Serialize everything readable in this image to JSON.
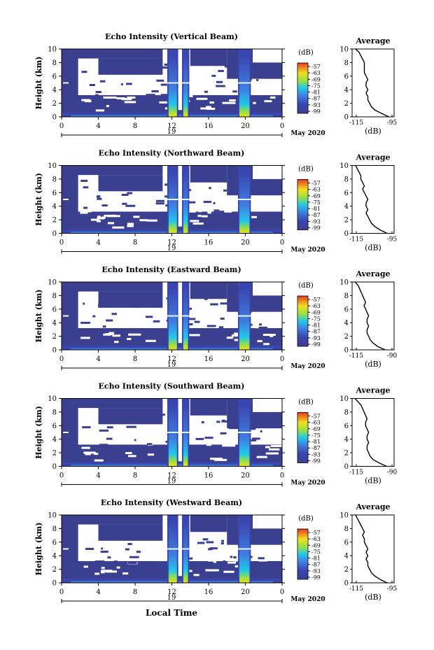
{
  "figure": {
    "xlabel": "Local Time",
    "avg_title": "Average",
    "colorbar_unit": "(dB)",
    "date_label": "May 2020",
    "day_label": "19",
    "x_ticks": [
      "0",
      "4",
      "8",
      "12",
      "16",
      "20",
      "0"
    ],
    "y_ticks": [
      "0",
      "2",
      "4",
      "6",
      "8",
      "10"
    ],
    "ylabel": "Height (km)",
    "colorbar_ticks": [
      "-57",
      "-63",
      "-69",
      "-75",
      "-81",
      "-87",
      "-93",
      "-99"
    ],
    "colors": {
      "background": "#3b3f8f",
      "low": "#3a46b0",
      "mid_blue": "#3f7fe0",
      "cyan": "#22c8e8",
      "green": "#9be040",
      "yellow": "#f0e020",
      "red": "#e83820"
    }
  },
  "chart_data": [
    {
      "type": "heatmap",
      "title": "Echo Intensity (Vertical Beam)",
      "xlabel": "",
      "ylabel": "Height (km)",
      "xlim": [
        0,
        24
      ],
      "ylim": [
        0,
        10
      ],
      "clim": [
        -99,
        -57
      ],
      "grid": false,
      "avg_title": "Average",
      "avg_xticks": [
        "-115",
        "-95"
      ],
      "avg_xlabel": "(dB)",
      "avg_profile": {
        "height_km": [
          0,
          0.5,
          1,
          1.5,
          2,
          2.5,
          3,
          3.5,
          4,
          4.5,
          5,
          5.5,
          6,
          6.5,
          7,
          7.5,
          8,
          8.5,
          9,
          9.5,
          10
        ],
        "db": [
          -96,
          -100,
          -104,
          -106,
          -107,
          -108,
          -108,
          -109,
          -108,
          -109,
          -109,
          -108,
          -109,
          -110,
          -110,
          -110,
          -110,
          -111,
          -112,
          -113,
          -115
        ]
      }
    },
    {
      "type": "heatmap",
      "title": "Echo Intensity (Northward Beam)",
      "xlabel": "",
      "ylabel": "Height (km)",
      "xlim": [
        0,
        24
      ],
      "ylim": [
        0,
        10
      ],
      "clim": [
        -99,
        -57
      ],
      "grid": false,
      "avg_title": "Average",
      "avg_xticks": [
        "-115",
        "-95"
      ],
      "avg_xlabel": "(dB)",
      "avg_profile": {
        "height_km": [
          0,
          0.5,
          1,
          1.5,
          2,
          2.5,
          3,
          3.5,
          4,
          4.5,
          5,
          5.5,
          6,
          6.5,
          7,
          7.5,
          8,
          8.5,
          9,
          9.5,
          10
        ],
        "db": [
          -97,
          -101,
          -104,
          -106,
          -107,
          -108,
          -109,
          -108,
          -109,
          -109,
          -108,
          -109,
          -110,
          -111,
          -110,
          -111,
          -112,
          -112,
          -113,
          -114,
          -115
        ]
      }
    },
    {
      "type": "heatmap",
      "title": "Echo Intensity (Eastward Beam)",
      "xlabel": "",
      "ylabel": "Height (km)",
      "xlim": [
        0,
        24
      ],
      "ylim": [
        0,
        10
      ],
      "clim": [
        -99,
        -57
      ],
      "grid": false,
      "avg_title": "Average",
      "avg_xticks": [
        "-115",
        "-90"
      ],
      "avg_xlabel": "(dB)",
      "avg_profile": {
        "height_km": [
          0,
          0.5,
          1,
          1.5,
          2,
          2.5,
          3,
          3.5,
          4,
          4.5,
          5,
          5.5,
          6,
          6.5,
          7,
          7.5,
          8,
          8.5,
          9,
          9.5,
          10
        ],
        "db": [
          -95,
          -100,
          -103,
          -105,
          -106,
          -107,
          -107,
          -106,
          -107,
          -107,
          -106,
          -107,
          -108,
          -109,
          -108,
          -109,
          -110,
          -111,
          -112,
          -113,
          -115
        ]
      }
    },
    {
      "type": "heatmap",
      "title": "Echo Intensity (Southward Beam)",
      "xlabel": "",
      "ylabel": "Height (km)",
      "xlim": [
        0,
        24
      ],
      "ylim": [
        0,
        10
      ],
      "clim": [
        -99,
        -57
      ],
      "grid": false,
      "avg_title": "Average",
      "avg_xticks": [
        "-115",
        "-90"
      ],
      "avg_xlabel": "(dB)",
      "avg_profile": {
        "height_km": [
          0,
          0.5,
          1,
          1.5,
          2,
          2.5,
          3,
          3.5,
          4,
          4.5,
          5,
          5.5,
          6,
          6.5,
          7,
          7.5,
          8,
          8.5,
          9,
          9.5,
          10
        ],
        "db": [
          -94,
          -99,
          -103,
          -105,
          -106,
          -107,
          -107,
          -106,
          -107,
          -107,
          -106,
          -107,
          -108,
          -108,
          -107,
          -108,
          -109,
          -110,
          -111,
          -113,
          -115
        ]
      }
    },
    {
      "type": "heatmap",
      "title": "Echo Intensity (Westward Beam)",
      "xlabel": "Local Time",
      "ylabel": "Height (km)",
      "xlim": [
        0,
        24
      ],
      "ylim": [
        0,
        10
      ],
      "clim": [
        -99,
        -57
      ],
      "grid": false,
      "avg_title": "Average",
      "avg_xticks": [
        "-115",
        "-95"
      ],
      "avg_xlabel": "(dB)",
      "avg_profile": {
        "height_km": [
          0,
          0.5,
          1,
          1.5,
          2,
          2.5,
          3,
          3.5,
          4,
          4.5,
          5,
          5.5,
          6,
          6.5,
          7,
          7.5,
          8,
          8.5,
          9,
          9.5,
          10
        ],
        "db": [
          -97,
          -101,
          -104,
          -106,
          -107,
          -108,
          -108,
          -109,
          -108,
          -109,
          -108,
          -109,
          -110,
          -110,
          -111,
          -110,
          -111,
          -112,
          -113,
          -114,
          -115
        ]
      }
    }
  ]
}
